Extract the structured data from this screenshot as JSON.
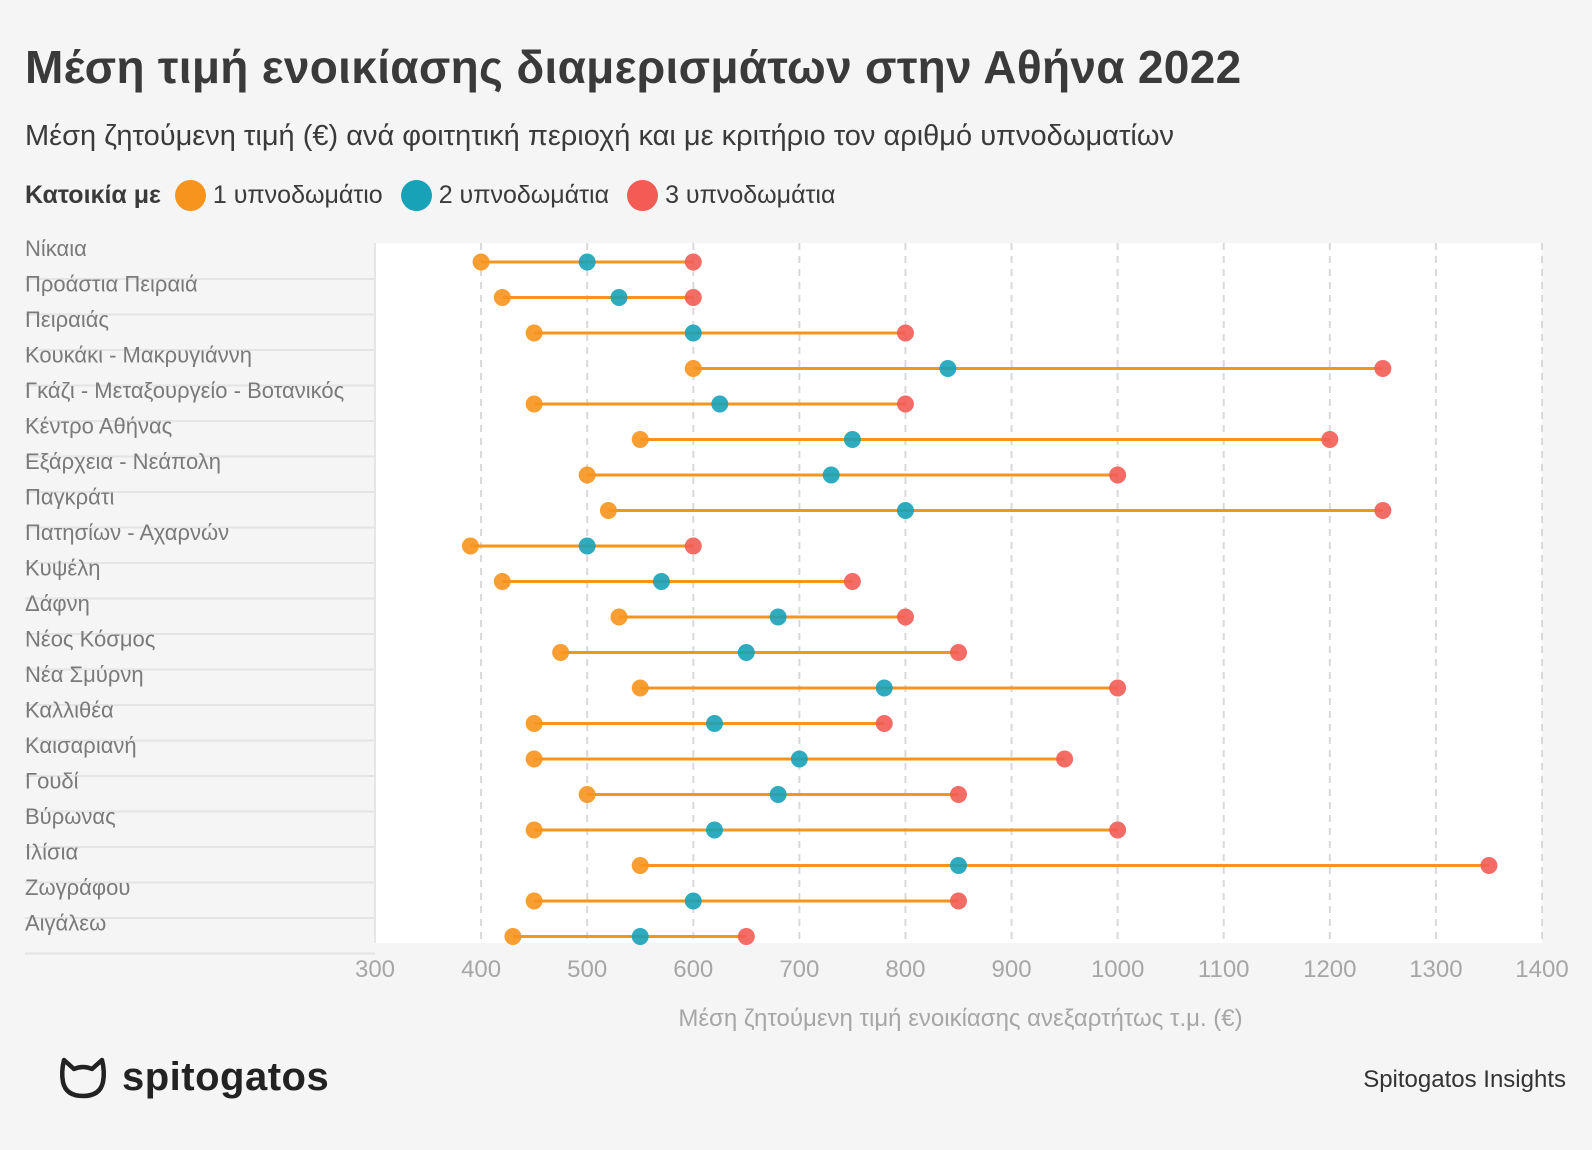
{
  "title": "Μέση τιμή ενοικίασης διαμερισμάτων στην Αθήνα 2022",
  "subtitle": "Μέση ζητούμενη τιμή (€) ανά φοιτητική περιοχή και με κριτήριο τον αριθμό υπνοδωματίων",
  "legend": {
    "title": "Κατοικία με",
    "items": [
      {
        "label": "1 υπνοδωμάτιο",
        "color": "#f7941d"
      },
      {
        "label": "2 υπνοδωμάτια",
        "color": "#17a2b8"
      },
      {
        "label": "3 υπνοδωμάτια",
        "color": "#f25c54"
      }
    ]
  },
  "footer": {
    "logo_text": "spitogatos",
    "logo_icon": "cat-head-icon",
    "source": "Spitogatos Insights"
  },
  "chart_data": {
    "type": "dumbbell",
    "xlabel": "Μέση ζητούμενη τιμή ενοικίασης ανεξαρτήτως τ.μ. (€)",
    "xlim": [
      300,
      1400
    ],
    "xticks": [
      300,
      400,
      500,
      600,
      700,
      800,
      900,
      1000,
      1100,
      1200,
      1300,
      1400
    ],
    "grid": true,
    "line_color": "#f7941d",
    "categories": [
      "Νίκαια",
      "Προάστια Πειραιά",
      "Πειραιάς",
      "Κουκάκι - Μακρυγιάννη",
      "Γκάζι - Μεταξουργείο - Βοτανικός",
      "Κέντρο Αθήνας",
      "Εξάρχεια - Νεάπολη",
      "Παγκράτι",
      "Πατησίων - Αχαρνών",
      "Κυψέλη",
      "Δάφνη",
      "Νέος Κόσμος",
      "Νέα Σμύρνη",
      "Καλλιθέα",
      "Καισαριανή",
      "Γουδί",
      "Βύρωνας",
      "Ιλίσια",
      "Ζωγράφου",
      "Αιγάλεω"
    ],
    "series": [
      {
        "name": "1 υπνοδωμάτιο",
        "color": "#f7941d",
        "values": [
          400,
          420,
          450,
          600,
          450,
          550,
          500,
          520,
          390,
          420,
          530,
          475,
          550,
          450,
          450,
          500,
          450,
          550,
          450,
          430
        ]
      },
      {
        "name": "2 υπνοδωμάτια",
        "color": "#17a2b8",
        "values": [
          500,
          530,
          600,
          840,
          625,
          750,
          730,
          800,
          500,
          570,
          680,
          650,
          780,
          620,
          700,
          680,
          620,
          850,
          600,
          550
        ]
      },
      {
        "name": "3 υπνοδωμάτια",
        "color": "#f25c54",
        "values": [
          600,
          600,
          800,
          1250,
          800,
          1200,
          1000,
          1250,
          600,
          750,
          800,
          850,
          1000,
          780,
          950,
          850,
          1000,
          1350,
          850,
          650
        ]
      }
    ]
  }
}
